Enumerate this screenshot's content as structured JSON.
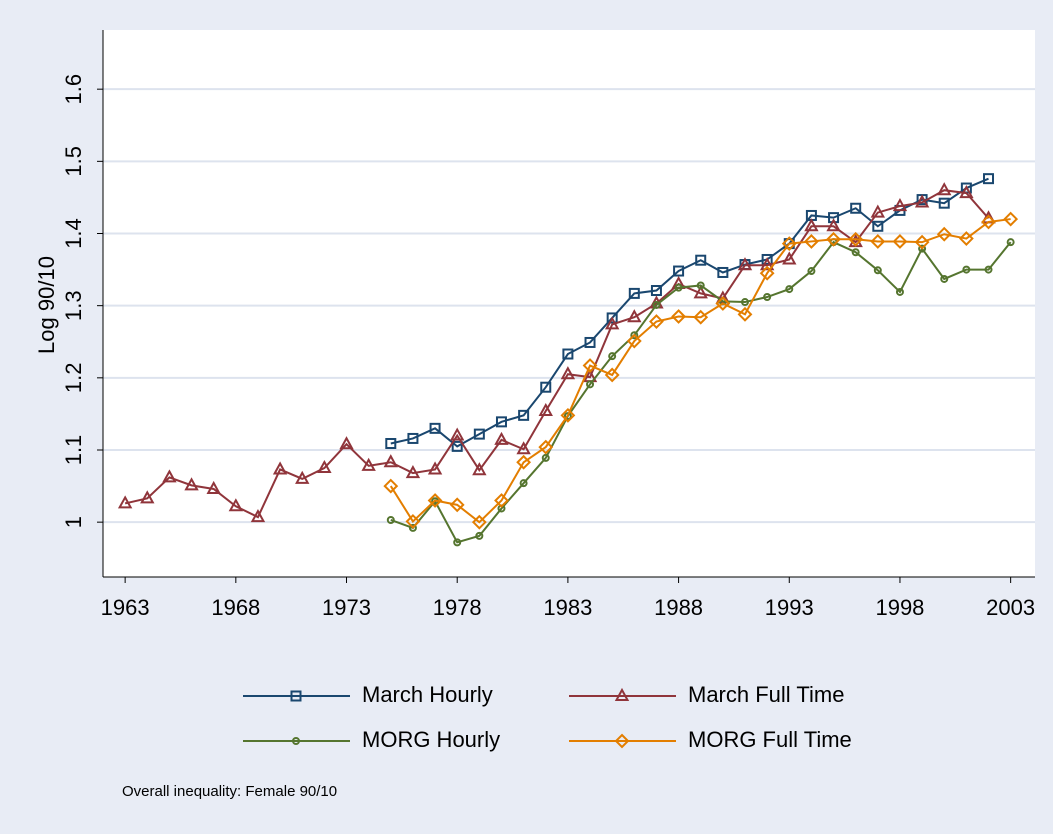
{
  "chart_data": {
    "type": "line",
    "y_label": "Log 90/10",
    "note": "Overall inequality: Female 90/10",
    "x": [
      1963,
      1964,
      1965,
      1966,
      1967,
      1968,
      1969,
      1970,
      1971,
      1972,
      1973,
      1974,
      1975,
      1976,
      1977,
      1978,
      1979,
      1980,
      1981,
      1982,
      1983,
      1984,
      1985,
      1986,
      1987,
      1988,
      1989,
      1990,
      1991,
      1992,
      1993,
      1994,
      1995,
      1996,
      1997,
      1998,
      1999,
      2000,
      2001,
      2002,
      2003
    ],
    "series": [
      {
        "name": "March Hourly",
        "color": "#1a476f",
        "marker": "square",
        "values": [
          null,
          null,
          null,
          null,
          null,
          null,
          null,
          null,
          null,
          null,
          null,
          null,
          1.109,
          1.116,
          1.13,
          1.105,
          1.122,
          1.139,
          1.148,
          1.187,
          1.233,
          1.249,
          1.283,
          1.317,
          1.321,
          1.348,
          1.363,
          1.346,
          1.357,
          1.364,
          1.386,
          1.425,
          1.422,
          1.435,
          1.41,
          1.432,
          1.447,
          1.442,
          1.463,
          1.476,
          null
        ]
      },
      {
        "name": "March Full Time",
        "color": "#90353b",
        "marker": "triangle",
        "values": [
          1.026,
          1.033,
          1.062,
          1.051,
          1.046,
          1.022,
          1.007,
          1.073,
          1.06,
          1.075,
          1.108,
          1.078,
          1.083,
          1.068,
          1.073,
          1.12,
          1.072,
          1.114,
          1.101,
          1.154,
          1.205,
          1.201,
          1.274,
          1.284,
          1.303,
          1.33,
          1.317,
          1.31,
          1.356,
          1.356,
          1.364,
          1.41,
          1.41,
          1.388,
          1.429,
          1.438,
          1.443,
          1.46,
          1.456,
          1.421,
          null
        ]
      },
      {
        "name": "MORG Hourly",
        "color": "#55752f",
        "marker": "circle",
        "values": [
          null,
          null,
          null,
          null,
          null,
          null,
          null,
          null,
          null,
          null,
          null,
          null,
          1.003,
          0.992,
          1.029,
          0.972,
          0.981,
          1.019,
          1.054,
          1.089,
          1.147,
          1.191,
          1.23,
          1.259,
          1.301,
          1.325,
          1.328,
          1.306,
          1.305,
          1.312,
          1.323,
          1.348,
          1.388,
          1.374,
          1.349,
          1.319,
          1.379,
          1.337,
          1.35,
          1.35,
          1.388
        ]
      },
      {
        "name": "MORG Full Time",
        "color": "#e37e00",
        "marker": "diamond",
        "values": [
          null,
          null,
          null,
          null,
          null,
          null,
          null,
          null,
          null,
          null,
          null,
          null,
          1.05,
          1.001,
          1.03,
          1.024,
          1.0,
          1.03,
          1.083,
          1.104,
          1.148,
          1.217,
          1.204,
          1.251,
          1.278,
          1.285,
          1.284,
          1.303,
          1.288,
          1.345,
          1.386,
          1.389,
          1.392,
          1.392,
          1.389,
          1.389,
          1.388,
          1.399,
          1.393,
          1.416,
          1.42
        ]
      }
    ],
    "xlim": [
      1962,
      2004.1
    ],
    "xticks": [
      1963,
      1968,
      1973,
      1978,
      1983,
      1988,
      1993,
      1998,
      2003
    ],
    "ylim": [
      0.924,
      1.682
    ],
    "yticks": [
      1,
      1.1,
      1.2,
      1.3,
      1.4,
      1.5,
      1.6
    ],
    "grid": true
  }
}
